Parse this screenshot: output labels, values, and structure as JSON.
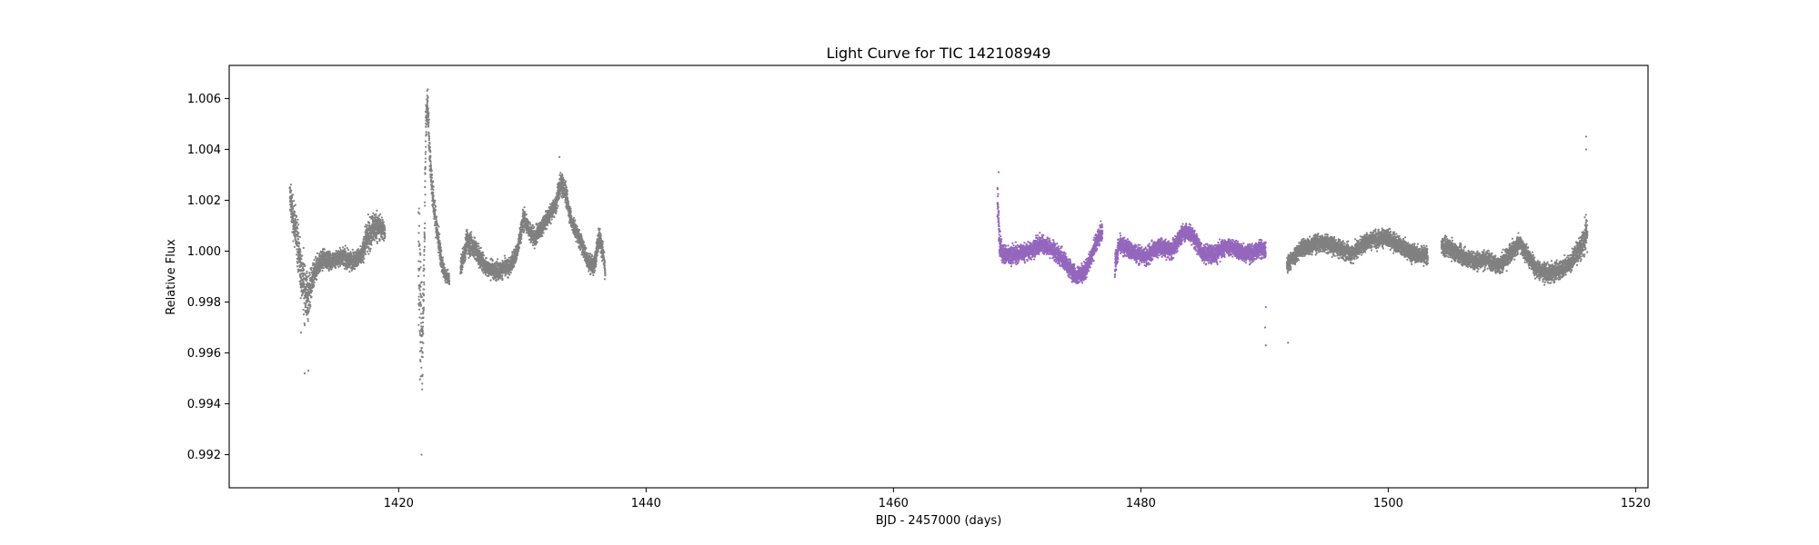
{
  "chart_data": {
    "type": "scatter",
    "title": "Light Curve for TIC 142108949",
    "xlabel": "BJD - 2457000 (days)",
    "ylabel": "Relative Flux",
    "xlim": [
      1406.3,
      1521.0
    ],
    "ylim": [
      0.9907,
      1.0073
    ],
    "xticks": [
      1420,
      1440,
      1460,
      1480,
      1500,
      1520
    ],
    "xtick_labels": [
      "1420",
      "1440",
      "1460",
      "1480",
      "1500",
      "1520"
    ],
    "yticks": [
      0.992,
      0.994,
      0.996,
      0.998,
      1.0,
      1.002,
      1.004,
      1.006
    ],
    "ytick_labels": [
      "0.992",
      "0.994",
      "0.996",
      "0.998",
      "1.000",
      "1.002",
      "1.004",
      "1.006"
    ],
    "grid": false,
    "legend": null,
    "series": [
      {
        "color": "#808080",
        "marker_size": 1.1,
        "segments": [
          {
            "x": [
              1411.2,
              1411.5,
              1411.8,
              1412.1,
              1412.4,
              1412.7,
              1413.0,
              1413.5,
              1414.0,
              1414.5,
              1415.0,
              1415.5,
              1416.0,
              1416.5,
              1417.0,
              1417.4,
              1417.8,
              1418.2,
              1418.6,
              1418.9
            ],
            "y": [
              1.0022,
              1.0012,
              1.0005,
              0.9992,
              0.9985,
              0.9982,
              0.9988,
              0.9995,
              0.9997,
              0.9996,
              0.9997,
              0.9998,
              0.9996,
              0.9997,
              0.9998,
              1.0005,
              1.0008,
              1.001,
              1.0009,
              1.0008
            ],
            "spread": [
              0.0005,
              0.0007,
              0.0008,
              0.0009,
              0.001,
              0.0008,
              0.0005,
              0.00035,
              0.0003,
              0.0003,
              0.0003,
              0.0003,
              0.0003,
              0.0003,
              0.0003,
              0.0005,
              0.0006,
              0.0005,
              0.0004,
              0.0003
            ]
          },
          {
            "x": [
              1421.6,
              1421.75,
              1421.9,
              1422.0,
              1422.1,
              1422.2,
              1422.35,
              1422.5,
              1422.7,
              1422.9,
              1423.2,
              1423.5,
              1423.8,
              1424.1
            ],
            "y": [
              1.0,
              0.998,
              0.996,
              0.9975,
              1.001,
              1.005,
              1.0058,
              1.004,
              1.0025,
              1.0015,
              1.0005,
              0.9995,
              0.999,
              0.9989
            ],
            "spread": [
              0.003,
              0.0022,
              0.0015,
              0.0012,
              0.001,
              0.0008,
              0.0006,
              0.0006,
              0.0006,
              0.0005,
              0.0005,
              0.0003,
              0.0002,
              0.0002
            ]
          },
          {
            "x": [
              1425.0,
              1425.5,
              1426.0,
              1427.0,
              1428.0,
              1429.0,
              1429.6,
              1430.1,
              1430.6,
              1431.0,
              1432.0,
              1432.7,
              1433.1,
              1433.5,
              1434.0,
              1434.7,
              1435.3,
              1435.8,
              1436.2,
              1436.5,
              1436.7
            ],
            "y": [
              0.9993,
              1.0004,
              1.0002,
              0.9994,
              0.9992,
              0.9994,
              1.0,
              1.0013,
              1.0008,
              1.0005,
              1.0013,
              1.0018,
              1.0027,
              1.0023,
              1.0011,
              1.0004,
              0.9996,
              0.9994,
              1.0006,
              1.0,
              0.9992
            ],
            "spread": [
              0.00035,
              0.0004,
              0.0004,
              0.0003,
              0.0003,
              0.0003,
              0.0003,
              0.0004,
              0.0003,
              0.0003,
              0.0003,
              0.0003,
              0.0004,
              0.0004,
              0.0003,
              0.0003,
              0.0003,
              0.0003,
              0.0004,
              0.0003,
              0.0003
            ]
          },
          {
            "x": [
              1491.8,
              1492.2,
              1492.6,
              1493.0,
              1494.0,
              1495.0,
              1496.0,
              1497.0,
              1498.0,
              1499.0,
              1500.0,
              1501.0,
              1502.0,
              1503.2
            ],
            "y": [
              0.9994,
              0.9997,
              0.9999,
              1.0001,
              1.0003,
              1.0003,
              1.0001,
              0.9999,
              1.0003,
              1.0005,
              1.0005,
              1.0002,
              0.9999,
              0.9998
            ],
            "spread": [
              0.0003,
              0.0003,
              0.0003,
              0.0003,
              0.0003,
              0.0003,
              0.0003,
              0.0003,
              0.0003,
              0.0003,
              0.0003,
              0.0003,
              0.0003,
              0.0003
            ]
          },
          {
            "x": [
              1504.3,
              1505.0,
              1506.0,
              1507.0,
              1508.0,
              1509.0,
              1510.0,
              1510.6,
              1511.3,
              1512.0,
              1513.0,
              1514.0,
              1514.8,
              1515.3,
              1515.8,
              1516.1
            ],
            "y": [
              1.0002,
              1.0001,
              0.9998,
              0.9996,
              0.9997,
              0.9994,
              1.0,
              1.0003,
              0.9998,
              0.9993,
              0.9991,
              0.9993,
              0.9996,
              1.0,
              1.0004,
              1.0008
            ],
            "spread": [
              0.0003,
              0.0003,
              0.0003,
              0.0003,
              0.0003,
              0.0003,
              0.0003,
              0.0003,
              0.0003,
              0.0003,
              0.0003,
              0.0003,
              0.0003,
              0.0004,
              0.0005,
              0.0006
            ]
          }
        ],
        "outliers": [
          {
            "x": 1421.85,
            "y": 0.992
          },
          {
            "x": 1412.4,
            "y": 0.9952
          },
          {
            "x": 1412.7,
            "y": 0.9953
          },
          {
            "x": 1412.1,
            "y": 0.9968
          },
          {
            "x": 1433.0,
            "y": 1.0037
          },
          {
            "x": 1491.9,
            "y": 0.9964
          },
          {
            "x": 1516.0,
            "y": 1.0045
          },
          {
            "x": 1516.0,
            "y": 1.004
          },
          {
            "x": 1422.3,
            "y": 1.0063
          }
        ]
      },
      {
        "color": "#9467bd",
        "marker_size": 1.1,
        "segments": [
          {
            "x": [
              1468.4,
              1468.6,
              1468.9,
              1469.3,
              1470.0,
              1471.0,
              1472.0,
              1473.0,
              1474.0,
              1474.8,
              1475.5,
              1476.0,
              1476.5,
              1476.9
            ],
            "y": [
              1.002,
              1.0003,
              0.9999,
              0.9998,
              0.9999,
              1.0,
              1.0003,
              1.0,
              0.9995,
              0.999,
              0.9992,
              0.9998,
              1.0005,
              1.0008
            ],
            "spread": [
              0.0008,
              0.0004,
              0.00035,
              0.0003,
              0.0003,
              0.0003,
              0.0003,
              0.0003,
              0.0003,
              0.0003,
              0.0003,
              0.0003,
              0.0003,
              0.0003
            ]
          },
          {
            "x": [
              1477.9,
              1478.2,
              1478.6,
              1479.5,
              1480.5,
              1481.5,
              1482.5,
              1483.0,
              1483.5,
              1484.2,
              1485.0,
              1486.0,
              1487.0,
              1488.0,
              1489.0,
              1489.6,
              1490.1
            ],
            "y": [
              0.9994,
              1.0002,
              1.0002,
              0.9999,
              0.9998,
              1.0002,
              1.0,
              1.0004,
              1.0008,
              1.0006,
              0.9999,
              0.9999,
              1.0002,
              1.0,
              0.9999,
              1.0001,
              1.0
            ],
            "spread": [
              0.0005,
              0.0003,
              0.0003,
              0.0003,
              0.0003,
              0.0003,
              0.0003,
              0.0003,
              0.0003,
              0.0003,
              0.0003,
              0.0003,
              0.0003,
              0.0003,
              0.0003,
              0.0003,
              0.0003
            ]
          }
        ],
        "outliers": [
          {
            "x": 1468.5,
            "y": 1.0031
          },
          {
            "x": 1490.1,
            "y": 0.9963
          },
          {
            "x": 1490.05,
            "y": 0.997
          },
          {
            "x": 1490.1,
            "y": 0.9978
          }
        ]
      }
    ]
  }
}
